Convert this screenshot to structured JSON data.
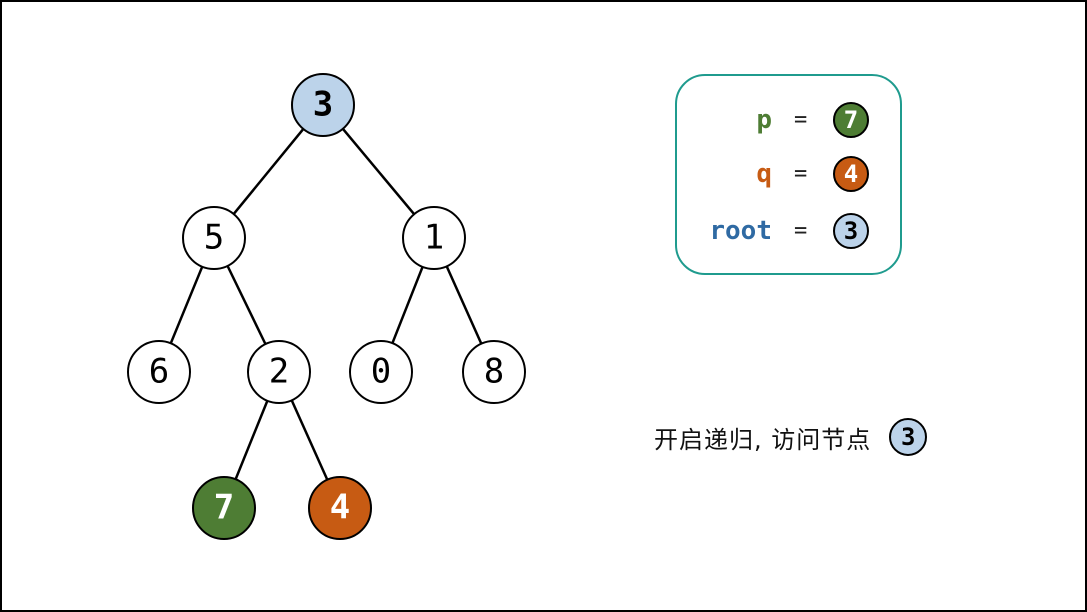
{
  "colors": {
    "root_fill": "#bcd3ea",
    "p_fill": "#4e7d34",
    "q_fill": "#c75b13",
    "default_fill": "#ffffff",
    "p_text": "#4e7d34",
    "q_text": "#c75b13",
    "root_text": "#2f6aa3",
    "legend_border": "#1f9b8e"
  },
  "tree": {
    "nodes": [
      {
        "id": "n3",
        "label": "3",
        "role": "root"
      },
      {
        "id": "n5",
        "label": "5",
        "role": "default"
      },
      {
        "id": "n1",
        "label": "1",
        "role": "default"
      },
      {
        "id": "n6",
        "label": "6",
        "role": "default"
      },
      {
        "id": "n2",
        "label": "2",
        "role": "default"
      },
      {
        "id": "n0",
        "label": "0",
        "role": "default"
      },
      {
        "id": "n8",
        "label": "8",
        "role": "default"
      },
      {
        "id": "n7",
        "label": "7",
        "role": "p"
      },
      {
        "id": "n4",
        "label": "4",
        "role": "q"
      }
    ],
    "edges": [
      [
        "n3",
        "n5"
      ],
      [
        "n3",
        "n1"
      ],
      [
        "n5",
        "n6"
      ],
      [
        "n5",
        "n2"
      ],
      [
        "n1",
        "n0"
      ],
      [
        "n1",
        "n8"
      ],
      [
        "n2",
        "n7"
      ],
      [
        "n2",
        "n4"
      ]
    ]
  },
  "legend": {
    "p": {
      "name": "p",
      "eq": "=",
      "value": "7"
    },
    "q": {
      "name": "q",
      "eq": "=",
      "value": "4"
    },
    "root": {
      "name": "root",
      "eq": "=",
      "value": "3"
    }
  },
  "caption": {
    "text": "开启递归, 访问节点",
    "node": "3"
  }
}
